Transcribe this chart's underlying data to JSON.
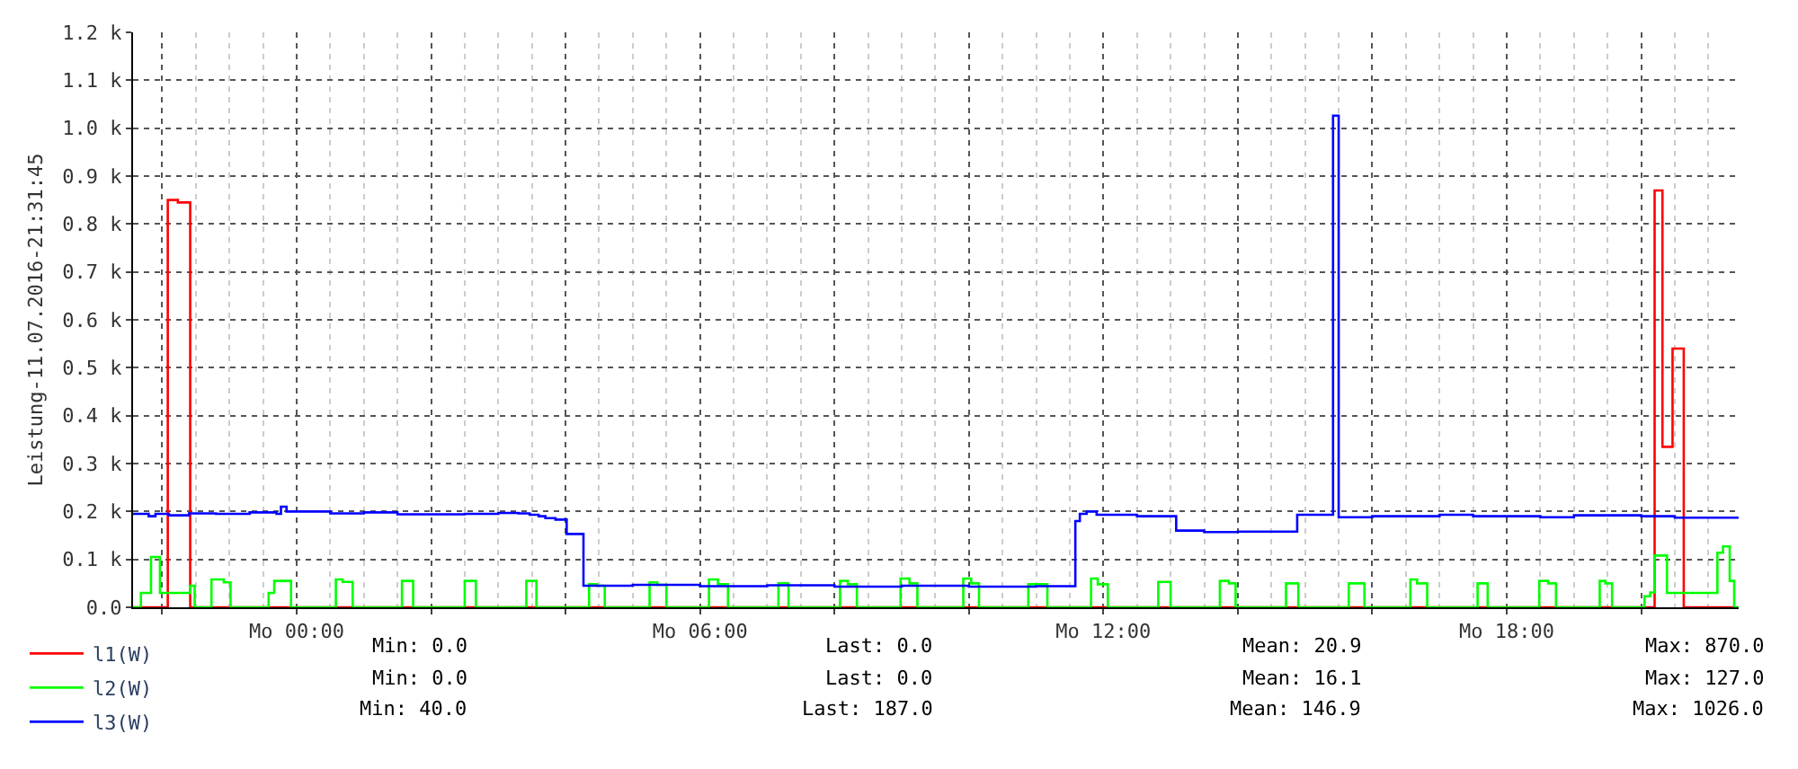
{
  "chart_data": {
    "type": "step",
    "ylabel": "Leistung-11.07.2016-21:31:45",
    "xlim": [
      "2016-07-10T21:34",
      "2016-07-11T21:27"
    ],
    "xticks": [
      {
        "value": "2016-07-10T22:00",
        "label": null
      },
      {
        "value": "2016-07-11T00:00",
        "label": "Mo 00:00"
      },
      {
        "value": "2016-07-11T02:00",
        "label": null
      },
      {
        "value": "2016-07-11T04:00",
        "label": null
      },
      {
        "value": "2016-07-11T06:00",
        "label": "Mo 06:00"
      },
      {
        "value": "2016-07-11T08:00",
        "label": null
      },
      {
        "value": "2016-07-11T10:00",
        "label": null
      },
      {
        "value": "2016-07-11T12:00",
        "label": "Mo 12:00"
      },
      {
        "value": "2016-07-11T14:00",
        "label": null
      },
      {
        "value": "2016-07-11T16:00",
        "label": null
      },
      {
        "value": "2016-07-11T18:00",
        "label": "Mo 18:00"
      },
      {
        "value": "2016-07-11T20:00",
        "label": null
      }
    ],
    "ylim": [
      0,
      1200
    ],
    "yticks": [
      {
        "value": 0,
        "label": "0.0"
      },
      {
        "value": 100,
        "label": "0.1 k"
      },
      {
        "value": 200,
        "label": "0.2 k"
      },
      {
        "value": 300,
        "label": "0.3 k"
      },
      {
        "value": 400,
        "label": "0.4 k"
      },
      {
        "value": 500,
        "label": "0.5 k"
      },
      {
        "value": 600,
        "label": "0.6 k"
      },
      {
        "value": 700,
        "label": "0.7 k"
      },
      {
        "value": 800,
        "label": "0.8 k"
      },
      {
        "value": 900,
        "label": "0.9 k"
      },
      {
        "value": 1000,
        "label": "1.0 k"
      },
      {
        "value": 1100,
        "label": "1.1 k"
      },
      {
        "value": 1200,
        "label": "1.2 k"
      }
    ],
    "grid": true,
    "legend": "bottom",
    "series": [
      {
        "name": "l1(W)",
        "color": "#ff0000",
        "x": [
          "2016-07-10T21:34",
          "2016-07-10T22:05",
          "2016-07-10T22:14",
          "2016-07-10T22:25",
          "2016-07-11T20:12",
          "2016-07-11T20:19",
          "2016-07-11T20:28",
          "2016-07-11T20:38",
          "2016-07-11T21:27"
        ],
        "values": [
          0,
          850,
          845,
          0,
          870,
          335,
          540,
          0,
          0
        ]
      },
      {
        "name": "l2(W)",
        "color": "#00ff00",
        "x": [
          "2016-07-10T21:34",
          "2016-07-10T21:41",
          "2016-07-10T21:50",
          "2016-07-10T21:58",
          "2016-07-10T22:25",
          "2016-07-10T22:29",
          "2016-07-10T22:44",
          "2016-07-10T22:55",
          "2016-07-10T23:01",
          "2016-07-10T23:35",
          "2016-07-10T23:40",
          "2016-07-10T23:55",
          "2016-07-11T00:35",
          "2016-07-11T00:41",
          "2016-07-11T00:50",
          "2016-07-11T01:34",
          "2016-07-11T01:44",
          "2016-07-11T02:30",
          "2016-07-11T02:40",
          "2016-07-11T03:25",
          "2016-07-11T03:34",
          "2016-07-11T04:21",
          "2016-07-11T04:28",
          "2016-07-11T04:35",
          "2016-07-11T05:15",
          "2016-07-11T05:22",
          "2016-07-11T05:30",
          "2016-07-11T06:08",
          "2016-07-11T06:16",
          "2016-07-11T06:25",
          "2016-07-11T07:10",
          "2016-07-11T07:19",
          "2016-07-11T08:05",
          "2016-07-11T08:12",
          "2016-07-11T08:20",
          "2016-07-11T08:59",
          "2016-07-11T09:07",
          "2016-07-11T09:14",
          "2016-07-11T09:55",
          "2016-07-11T10:02",
          "2016-07-11T10:09",
          "2016-07-11T10:53",
          "2016-07-11T11:10",
          "2016-07-11T11:49",
          "2016-07-11T11:55",
          "2016-07-11T12:04",
          "2016-07-11T12:49",
          "2016-07-11T13:00",
          "2016-07-11T13:44",
          "2016-07-11T13:52",
          "2016-07-11T13:58",
          "2016-07-11T14:43",
          "2016-07-11T14:54",
          "2016-07-11T15:39",
          "2016-07-11T15:53",
          "2016-07-11T16:34",
          "2016-07-11T16:40",
          "2016-07-11T16:49",
          "2016-07-11T17:34",
          "2016-07-11T17:43",
          "2016-07-11T18:29",
          "2016-07-11T18:37",
          "2016-07-11T18:44",
          "2016-07-11T19:23",
          "2016-07-11T19:28",
          "2016-07-11T19:34",
          "2016-07-11T20:03",
          "2016-07-11T20:08",
          "2016-07-11T20:12",
          "2016-07-11T20:23",
          "2016-07-11T21:08",
          "2016-07-11T21:13",
          "2016-07-11T21:19",
          "2016-07-11T21:23",
          "2016-07-11T21:27"
        ],
        "values": [
          0,
          30,
          105,
          30,
          45,
          0,
          58,
          52,
          0,
          30,
          55,
          0,
          58,
          53,
          0,
          55,
          0,
          55,
          0,
          55,
          0,
          48,
          45,
          0,
          52,
          47,
          0,
          58,
          48,
          0,
          50,
          0,
          55,
          48,
          0,
          60,
          50,
          0,
          60,
          50,
          0,
          48,
          0,
          60,
          48,
          0,
          53,
          0,
          55,
          50,
          0,
          50,
          0,
          50,
          0,
          58,
          50,
          0,
          50,
          0,
          55,
          50,
          0,
          55,
          50,
          0,
          23,
          31,
          108,
          30,
          114,
          127,
          55,
          0,
          0
        ]
      },
      {
        "name": "l3(W)",
        "color": "#0000ff",
        "x": [
          "2016-07-10T21:34",
          "2016-07-10T21:48",
          "2016-07-10T21:54",
          "2016-07-10T22:06",
          "2016-07-10T22:24",
          "2016-07-10T22:48",
          "2016-07-10T23:18",
          "2016-07-10T23:42",
          "2016-07-10T23:46",
          "2016-07-10T23:51",
          "2016-07-11T00:30",
          "2016-07-11T01:00",
          "2016-07-11T01:30",
          "2016-07-11T02:30",
          "2016-07-11T03:00",
          "2016-07-11T03:18",
          "2016-07-11T03:28",
          "2016-07-11T03:36",
          "2016-07-11T03:42",
          "2016-07-11T03:51",
          "2016-07-11T04:01",
          "2016-07-11T04:16",
          "2016-07-11T05:00",
          "2016-07-11T06:00",
          "2016-07-11T07:00",
          "2016-07-11T08:00",
          "2016-07-11T09:00",
          "2016-07-11T10:00",
          "2016-07-11T11:00",
          "2016-07-11T11:35",
          "2016-07-11T11:39",
          "2016-07-11T11:45",
          "2016-07-11T11:54",
          "2016-07-11T12:30",
          "2016-07-11T13:05",
          "2016-07-11T13:30",
          "2016-07-11T14:00",
          "2016-07-11T14:53",
          "2016-07-11T15:25",
          "2016-07-11T15:30",
          "2016-07-11T16:00",
          "2016-07-11T17:00",
          "2016-07-11T17:30",
          "2016-07-11T18:30",
          "2016-07-11T19:00",
          "2016-07-11T20:00",
          "2016-07-11T20:30",
          "2016-07-11T21:27"
        ],
        "values": [
          195,
          190,
          195,
          192,
          196,
          195,
          198,
          195,
          210,
          200,
          196,
          198,
          194,
          195,
          197,
          196,
          193,
          190,
          186,
          183,
          153,
          45,
          47,
          44,
          46,
          43,
          45,
          43,
          44,
          180,
          195,
          200,
          193,
          190,
          160,
          157,
          158,
          193,
          1026,
          188,
          190,
          193,
          190,
          188,
          192,
          190,
          187,
          187
        ]
      }
    ],
    "annotations": [
      "Min: 0.0",
      "Last: 0.0",
      "Mean: 20.9",
      "Max: 870.0",
      "Min: 0.0",
      "Last: 0.0",
      "Mean: 16.1",
      "Max: 127.0",
      "Min: 40.0",
      "Last: 187.0",
      "Mean: 146.9",
      "Max: 1026.0"
    ]
  }
}
